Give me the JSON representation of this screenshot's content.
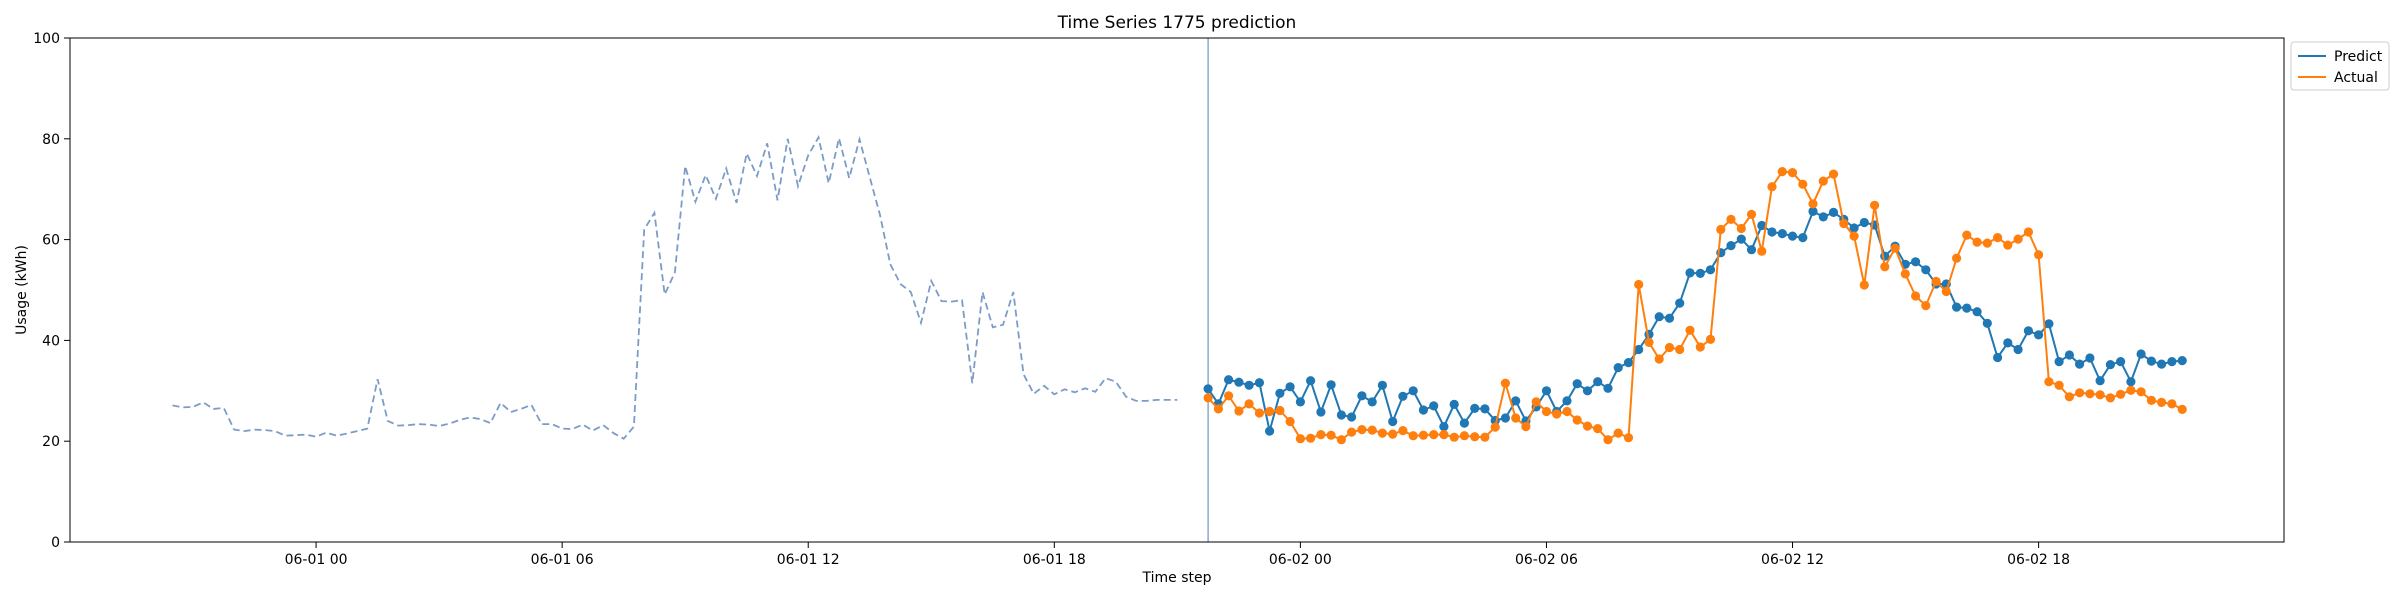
{
  "chart_data": {
    "type": "line",
    "title": "Time Series 1775 prediction",
    "xlabel": "Time step",
    "ylabel": "Usage (kWh)",
    "ylim": [
      0,
      100
    ],
    "xlim": [
      "2023-05-31 18:00",
      "2023-06-02 23:59"
    ],
    "x_ticks": [
      "06-01 00",
      "06-01 06",
      "06-01 12",
      "06-01 18",
      "06-02 00",
      "06-02 06",
      "06-02 12",
      "06-02 18"
    ],
    "y_ticks": [
      0,
      20,
      40,
      60,
      80,
      100
    ],
    "grid": false,
    "legend_position": "outside-top-right",
    "forecast_start": "2023-06-01 21:45",
    "colors": {
      "predict": "#1f77b4",
      "actual": "#ff7f0e",
      "history": "#7c9cc8"
    },
    "history": {
      "name": "",
      "style": "dashed",
      "start": "2023-05-31 20:30",
      "interval_minutes": 15,
      "values": [
        27.1,
        26.7,
        26.8,
        27.7,
        26.4,
        26.6,
        22.3,
        22.0,
        22.3,
        22.2,
        22.0,
        21.1,
        21.2,
        21.3,
        20.9,
        21.7,
        21.1,
        21.5,
        22.0,
        22.5,
        32.3,
        24.0,
        23.1,
        23.2,
        23.4,
        23.3,
        23.0,
        23.5,
        24.2,
        24.7,
        24.4,
        23.6,
        27.6,
        25.8,
        26.4,
        27.2,
        23.4,
        23.4,
        22.5,
        22.4,
        23.3,
        22.1,
        23.2,
        21.6,
        20.5,
        22.9,
        62.0,
        65.3,
        49.1,
        53.5,
        74.6,
        67.5,
        72.8,
        68.1,
        74.1,
        67.3,
        77.1,
        72.6,
        79.1,
        67.8,
        80.0,
        70.6,
        76.7,
        80.3,
        71.2,
        80.1,
        72.2,
        79.9,
        72.4,
        64.9,
        55.1,
        51.2,
        49.6,
        43.5,
        51.8,
        47.8,
        47.7,
        48.0,
        31.5,
        49.6,
        42.6,
        43.1,
        49.6,
        33.3,
        29.4,
        31.0,
        29.3,
        30.3,
        29.7,
        30.5,
        29.8,
        32.5,
        31.8,
        28.8,
        28.0,
        28.0,
        28.2,
        28.2,
        28.2
      ]
    },
    "series": [
      {
        "name": "Predict",
        "start": "2023-06-01 21:45",
        "interval_minutes": 15,
        "values": [
          30.4,
          27.4,
          32.2,
          31.7,
          31.1,
          31.6,
          22.0,
          29.5,
          30.8,
          27.8,
          32.0,
          25.8,
          31.2,
          25.2,
          24.8,
          29.0,
          27.8,
          31.1,
          23.9,
          28.9,
          30.0,
          26.2,
          27.0,
          22.9,
          27.3,
          23.6,
          26.5,
          26.4,
          24.1,
          24.6,
          28.0,
          24.0,
          26.8,
          30.0,
          25.9,
          28.0,
          31.4,
          30.0,
          31.8,
          30.5,
          34.6,
          35.6,
          38.2,
          41.2,
          44.7,
          44.4,
          47.4,
          53.4,
          53.3,
          54.0,
          57.4,
          58.8,
          60.1,
          58.0,
          62.8,
          61.5,
          61.2,
          60.7,
          60.4,
          65.6,
          64.5,
          65.4,
          64.0,
          62.3,
          63.4,
          62.9,
          56.7,
          58.7,
          55.1,
          55.6,
          54.0,
          51.2,
          51.2,
          46.6,
          46.4,
          45.7,
          43.4,
          36.6,
          39.5,
          38.2,
          41.9,
          41.1,
          43.3,
          35.8,
          37.1,
          35.3,
          36.5,
          32.0,
          35.2,
          35.8,
          31.8,
          37.3,
          35.9,
          35.3,
          35.8,
          36.0
        ]
      },
      {
        "name": "Actual",
        "start": "2023-06-01 21:45",
        "interval_minutes": 15,
        "values": [
          28.6,
          26.4,
          29.0,
          26.0,
          27.4,
          25.6,
          25.9,
          26.1,
          23.9,
          20.5,
          20.6,
          21.3,
          21.2,
          20.3,
          21.8,
          22.3,
          22.2,
          21.6,
          21.4,
          22.1,
          21.1,
          21.2,
          21.3,
          21.3,
          20.8,
          21.1,
          20.9,
          20.8,
          22.8,
          31.5,
          24.6,
          22.9,
          27.8,
          25.9,
          25.4,
          25.9,
          24.2,
          23.0,
          22.5,
          20.3,
          21.6,
          20.7,
          51.1,
          39.6,
          36.3,
          38.6,
          38.2,
          42.0,
          38.7,
          40.2,
          62.0,
          64.0,
          62.2,
          65.0,
          57.7,
          70.5,
          73.5,
          73.3,
          71.0,
          67.1,
          71.6,
          73.0,
          63.2,
          60.7,
          51.0,
          66.8,
          54.6,
          58.3,
          53.2,
          48.8,
          46.9,
          51.7,
          49.7,
          56.3,
          60.9,
          59.5,
          59.3,
          60.4,
          58.9,
          60.1,
          61.5,
          57.0,
          31.8,
          31.1,
          28.8,
          29.6,
          29.4,
          29.2,
          28.6,
          29.3,
          30.1,
          29.8,
          28.1,
          27.7,
          27.4,
          26.3
        ]
      }
    ]
  }
}
